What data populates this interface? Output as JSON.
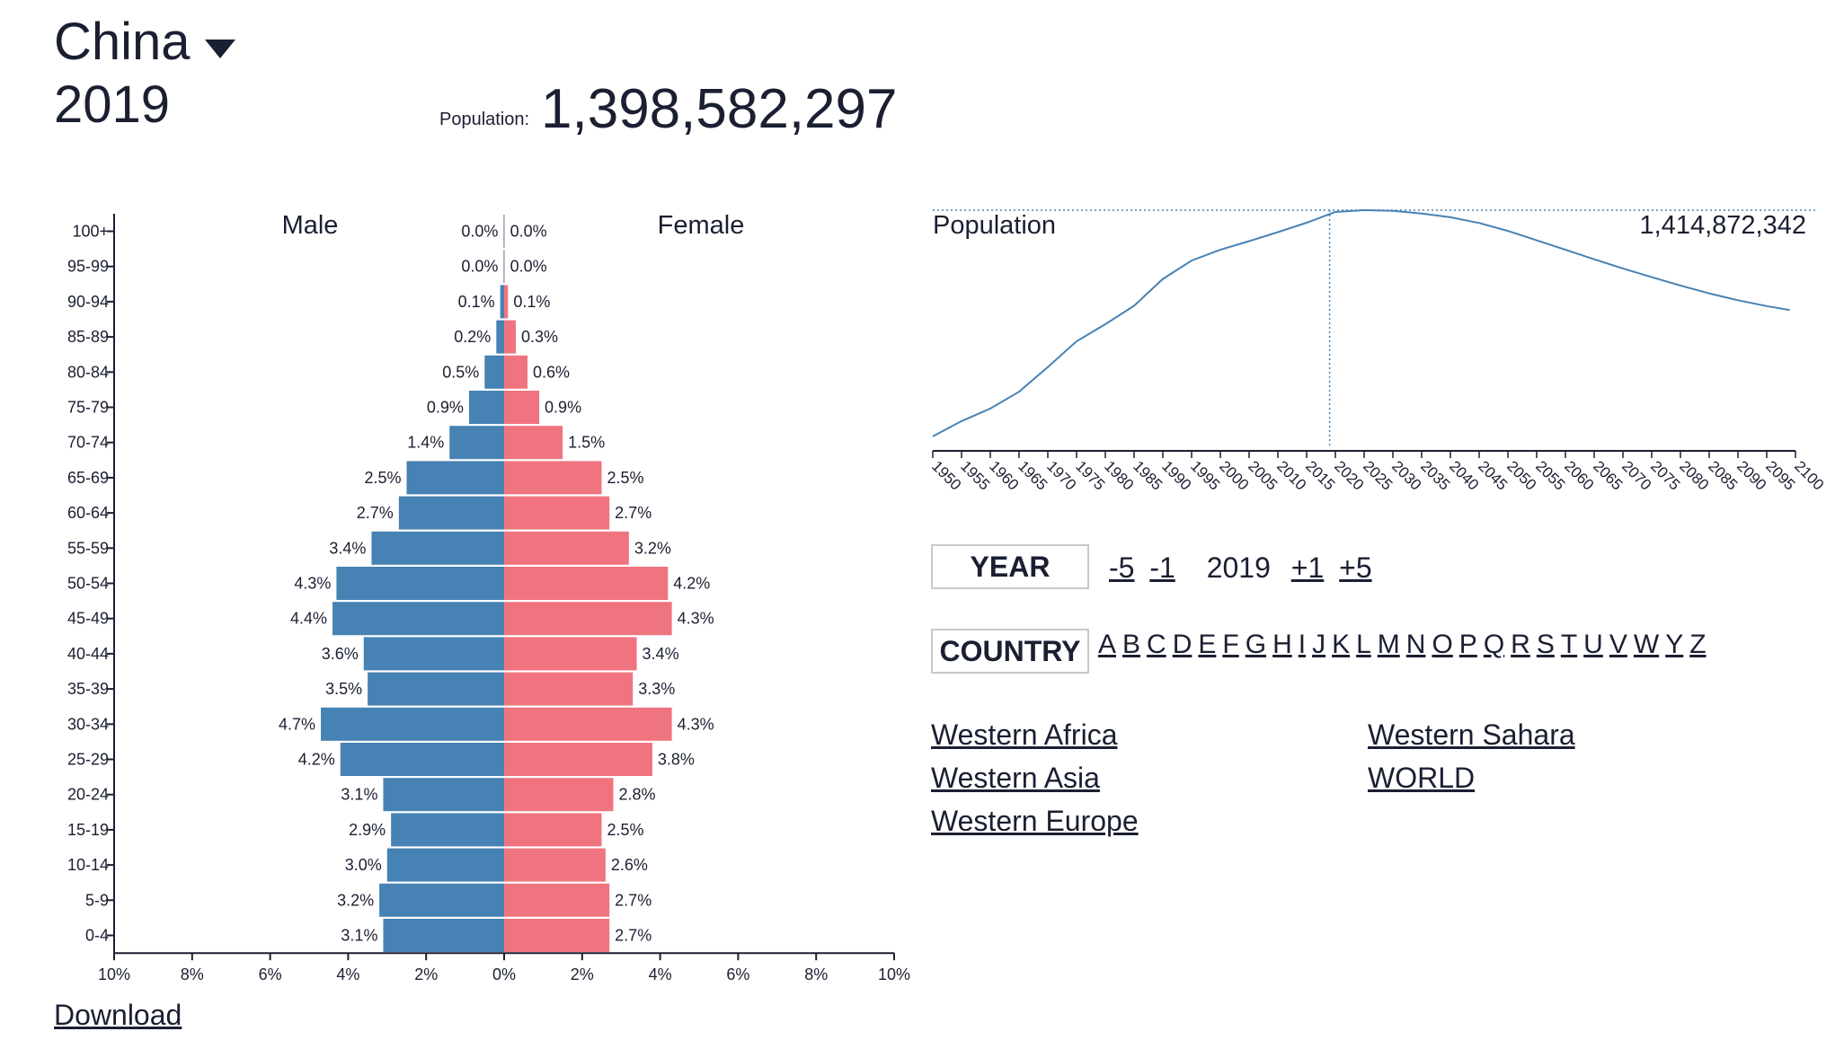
{
  "header": {
    "country": "China",
    "year": "2019",
    "population_label": "Population:",
    "population_value": "1,398,582,297"
  },
  "pyramid": {
    "male_label": "Male",
    "female_label": "Female",
    "colors": {
      "male": "#4682b4",
      "female": "#f07480"
    },
    "x_ticks": [
      "10%",
      "8%",
      "6%",
      "4%",
      "2%",
      "0%",
      "2%",
      "4%",
      "6%",
      "8%",
      "10%"
    ],
    "age_groups": [
      "100+",
      "95-99",
      "90-94",
      "85-89",
      "80-84",
      "75-79",
      "70-74",
      "65-69",
      "60-64",
      "55-59",
      "50-54",
      "45-49",
      "40-44",
      "35-39",
      "30-34",
      "25-29",
      "20-24",
      "15-19",
      "10-14",
      "5-9",
      "0-4"
    ],
    "male": [
      0.0,
      0.0,
      0.1,
      0.2,
      0.5,
      0.9,
      1.4,
      2.5,
      2.7,
      3.4,
      4.3,
      4.4,
      3.6,
      3.5,
      4.7,
      4.2,
      3.1,
      2.9,
      3.0,
      3.2,
      3.1
    ],
    "female": [
      0.0,
      0.0,
      0.1,
      0.3,
      0.6,
      0.9,
      1.5,
      2.5,
      2.7,
      3.2,
      4.2,
      4.3,
      3.4,
      3.3,
      4.3,
      3.8,
      2.8,
      2.5,
      2.6,
      2.7,
      2.7
    ],
    "male_labels": [
      "0.0%",
      "0.0%",
      "0.1%",
      "0.2%",
      "0.5%",
      "0.9%",
      "1.4%",
      "2.5%",
      "2.7%",
      "3.4%",
      "4.3%",
      "4.4%",
      "3.6%",
      "3.5%",
      "4.7%",
      "4.2%",
      "3.1%",
      "2.9%",
      "3.0%",
      "3.2%",
      "3.1%"
    ],
    "female_labels": [
      "0.0%",
      "0.0%",
      "0.1%",
      "0.3%",
      "0.6%",
      "0.9%",
      "1.5%",
      "2.5%",
      "2.7%",
      "3.2%",
      "4.2%",
      "4.3%",
      "3.4%",
      "3.3%",
      "4.3%",
      "3.8%",
      "2.8%",
      "2.5%",
      "2.6%",
      "2.7%",
      "2.7%"
    ]
  },
  "chart_data": {
    "type": "line",
    "title": "Population",
    "peak_label": "1,414,872,342",
    "x_ticks": [
      "1950",
      "1955",
      "1960",
      "1965",
      "1970",
      "1975",
      "1980",
      "1985",
      "1990",
      "1995",
      "2000",
      "2005",
      "2010",
      "2015",
      "2020",
      "2025",
      "2030",
      "2035",
      "2040",
      "2045",
      "2050",
      "2055",
      "2060",
      "2065",
      "2070",
      "2075",
      "2080",
      "2085",
      "2090",
      "2095",
      "2100"
    ],
    "xlim": [
      1950,
      2100
    ],
    "ylim": [
      540000000,
      1414872342
    ],
    "line_color": "#4682b4",
    "marker_year": 2019,
    "x": [
      1950,
      1955,
      1960,
      1965,
      1970,
      1975,
      1980,
      1985,
      1990,
      1995,
      2000,
      2005,
      2010,
      2015,
      2020,
      2025,
      2030,
      2035,
      2040,
      2045,
      2050,
      2055,
      2060,
      2065,
      2070,
      2075,
      2080,
      2085,
      2090,
      2095,
      2099
    ],
    "y": [
      554000000,
      612000000,
      660000000,
      724000000,
      818000000,
      916000000,
      981000000,
      1051000000,
      1153000000,
      1223000000,
      1264000000,
      1297000000,
      1331000000,
      1367000000,
      1408000000,
      1414872342,
      1412000000,
      1402000000,
      1388000000,
      1366000000,
      1336000000,
      1300000000,
      1264000000,
      1228000000,
      1193000000,
      1160000000,
      1128000000,
      1098000000,
      1072000000,
      1050000000,
      1035000000
    ]
  },
  "controls": {
    "year_label": "YEAR",
    "year_buttons": [
      "-5",
      "-1",
      "+1",
      "+5"
    ],
    "current_year": "2019",
    "country_label": "COUNTRY",
    "letters": [
      "A",
      "B",
      "C",
      "D",
      "E",
      "F",
      "G",
      "H",
      "I",
      "J",
      "K",
      "L",
      "M",
      "N",
      "O",
      "P",
      "Q",
      "R",
      "S",
      "T",
      "U",
      "V",
      "W",
      "Y",
      "Z"
    ],
    "regions_left": [
      "Western Africa",
      "Western Asia",
      "Western Europe"
    ],
    "regions_right": [
      "Western Sahara",
      "WORLD"
    ]
  },
  "footer": {
    "download_label": "Download"
  }
}
